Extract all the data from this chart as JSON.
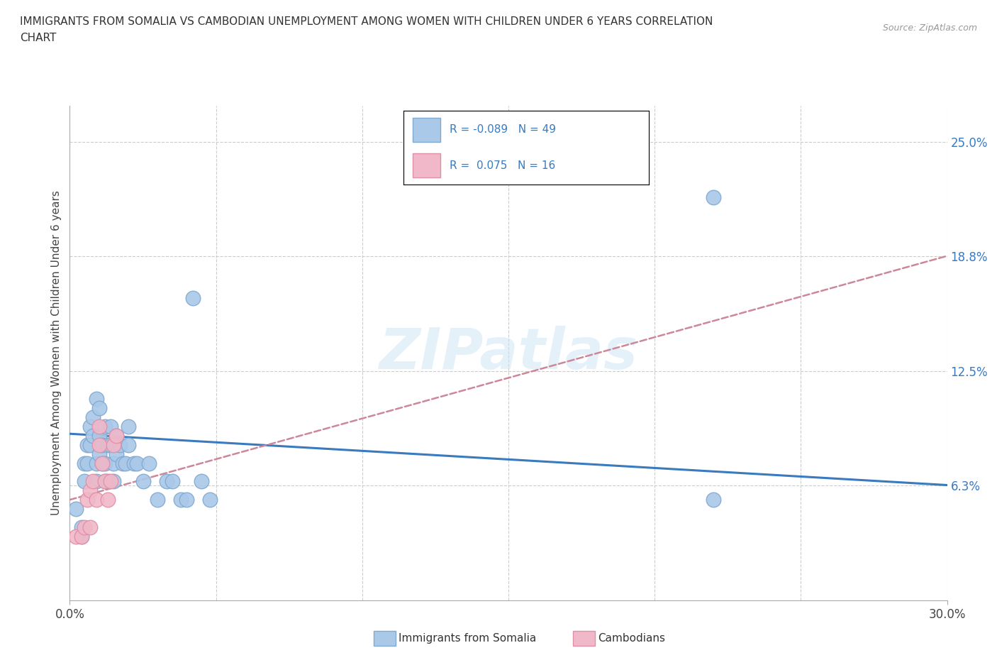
{
  "title_line1": "IMMIGRANTS FROM SOMALIA VS CAMBODIAN UNEMPLOYMENT AMONG WOMEN WITH CHILDREN UNDER 6 YEARS CORRELATION",
  "title_line2": "CHART",
  "source": "Source: ZipAtlas.com",
  "ylabel": "Unemployment Among Women with Children Under 6 years",
  "watermark": "ZIPatlas",
  "xlim": [
    0.0,
    0.3
  ],
  "ylim": [
    0.0,
    0.27
  ],
  "right_ytick_values": [
    0.063,
    0.125,
    0.188,
    0.25
  ],
  "right_ytick_labels": [
    "6.3%",
    "12.5%",
    "18.8%",
    "25.0%"
  ],
  "somalia_color": "#aac8e8",
  "cambodian_color": "#f0b8c8",
  "somalia_edge_color": "#80aad0",
  "cambodian_edge_color": "#e090a8",
  "trend_somalia_color": "#3a7abf",
  "trend_cambodian_color": "#cc8899",
  "somalia_x": [
    0.002,
    0.004,
    0.004,
    0.005,
    0.005,
    0.006,
    0.006,
    0.007,
    0.007,
    0.008,
    0.008,
    0.009,
    0.009,
    0.009,
    0.01,
    0.01,
    0.01,
    0.011,
    0.011,
    0.012,
    0.012,
    0.012,
    0.013,
    0.013,
    0.014,
    0.014,
    0.015,
    0.015,
    0.016,
    0.016,
    0.017,
    0.018,
    0.019,
    0.02,
    0.02,
    0.022,
    0.023,
    0.025,
    0.027,
    0.03,
    0.033,
    0.035,
    0.038,
    0.04,
    0.042,
    0.045,
    0.048,
    0.22,
    0.22
  ],
  "somalia_y": [
    0.05,
    0.04,
    0.035,
    0.075,
    0.065,
    0.085,
    0.075,
    0.095,
    0.085,
    0.1,
    0.09,
    0.11,
    0.075,
    0.065,
    0.105,
    0.09,
    0.08,
    0.085,
    0.075,
    0.095,
    0.075,
    0.065,
    0.085,
    0.065,
    0.085,
    0.095,
    0.075,
    0.065,
    0.09,
    0.08,
    0.085,
    0.075,
    0.075,
    0.095,
    0.085,
    0.075,
    0.075,
    0.065,
    0.075,
    0.055,
    0.065,
    0.065,
    0.055,
    0.055,
    0.165,
    0.065,
    0.055,
    0.055,
    0.22
  ],
  "cambodian_x": [
    0.002,
    0.004,
    0.005,
    0.006,
    0.007,
    0.007,
    0.008,
    0.009,
    0.01,
    0.01,
    0.011,
    0.012,
    0.013,
    0.014,
    0.015,
    0.016
  ],
  "cambodian_y": [
    0.035,
    0.035,
    0.04,
    0.055,
    0.04,
    0.06,
    0.065,
    0.055,
    0.085,
    0.095,
    0.075,
    0.065,
    0.055,
    0.065,
    0.085,
    0.09
  ],
  "trend_somalia_x0": 0.0,
  "trend_somalia_y0": 0.091,
  "trend_somalia_x1": 0.3,
  "trend_somalia_y1": 0.063,
  "trend_cambodian_x0": 0.0,
  "trend_cambodian_y0": 0.055,
  "trend_cambodian_x1": 0.3,
  "trend_cambodian_y1": 0.188
}
